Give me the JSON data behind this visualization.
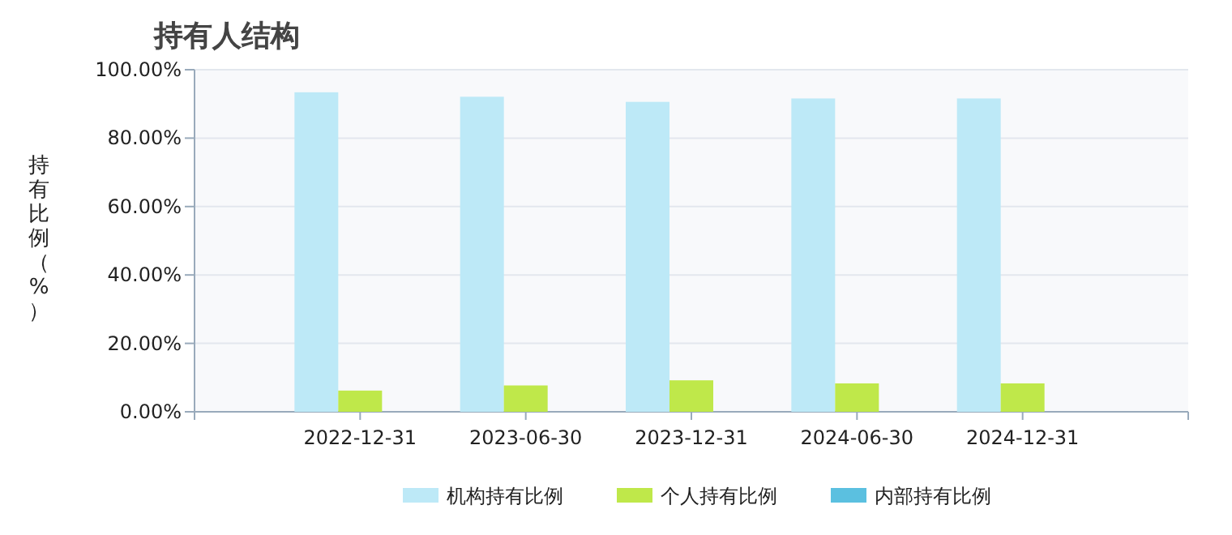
{
  "chart_data": {
    "type": "bar",
    "title": "持有人结构",
    "ylabel": "持有比例（%）",
    "categories": [
      "2022-12-31",
      "2023-06-30",
      "2023-12-31",
      "2024-06-30",
      "2024-12-31"
    ],
    "series": [
      {
        "name": "机构持有比例",
        "color": "#bde9f7",
        "values": [
          93.4,
          92.1,
          90.6,
          91.6,
          91.6
        ]
      },
      {
        "name": "个人持有比例",
        "color": "#bfe84a",
        "values": [
          6.2,
          7.7,
          9.2,
          8.3,
          8.3
        ]
      },
      {
        "name": "内部持有比例",
        "color": "#5bc0e0",
        "values": [
          0,
          0,
          0,
          0,
          0
        ]
      }
    ],
    "ylim": [
      0,
      100
    ],
    "yticks": [
      {
        "value": 0,
        "label": "0.00%"
      },
      {
        "value": 20,
        "label": "20.00%"
      },
      {
        "value": 40,
        "label": "40.00%"
      },
      {
        "value": 60,
        "label": "60.00%"
      },
      {
        "value": 80,
        "label": "80.00%"
      },
      {
        "value": 100,
        "label": "100.00%"
      }
    ],
    "grid": "y",
    "legend": "bottom"
  }
}
